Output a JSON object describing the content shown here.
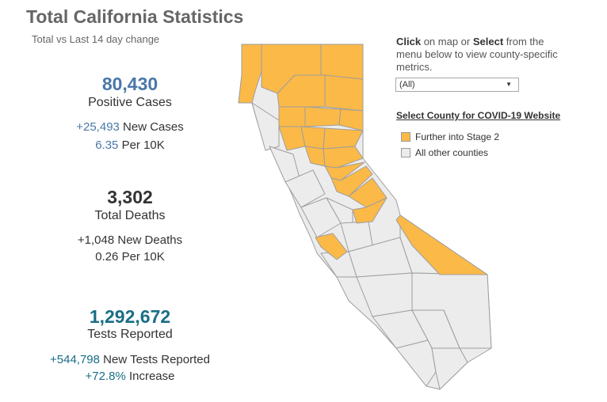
{
  "header": {
    "title": "Total California Statistics",
    "subtitle": "Total vs Last 14 day change"
  },
  "cases": {
    "total": "80,430",
    "label": "Positive Cases",
    "new_value": "+25,493",
    "new_label": "New Cases",
    "per_value": "6.35",
    "per_label": "Per 10K"
  },
  "deaths": {
    "total": "3,302",
    "label": "Total Deaths",
    "new_value": "+1,048",
    "new_label": "New Deaths",
    "per_value": "0.26",
    "per_label": "Per 10K"
  },
  "tests": {
    "total": "1,292,672",
    "label": "Tests Reported",
    "new_value": "+544,798",
    "new_label": "New Tests Reported",
    "increase_value": "+72.8%",
    "increase_label": "Increase"
  },
  "sidebar": {
    "instr_click": "Click",
    "instr_mid": " on map or ",
    "instr_select": "Select",
    "instr_rest": " from the menu below to view county-specific metrics.",
    "dropdown_value": "(All)",
    "website_link": "Select County for COVID-19 Website",
    "legend": [
      {
        "label": "Further into Stage 2",
        "color": "#fbb948"
      },
      {
        "label": "All other counties",
        "color": "#ececec"
      }
    ]
  },
  "colors": {
    "stage2": "#fbb948",
    "other": "#ececec",
    "border": "#9e9e9e",
    "cases_blue": "#4a78a8",
    "tests_teal": "#1a6e86"
  }
}
